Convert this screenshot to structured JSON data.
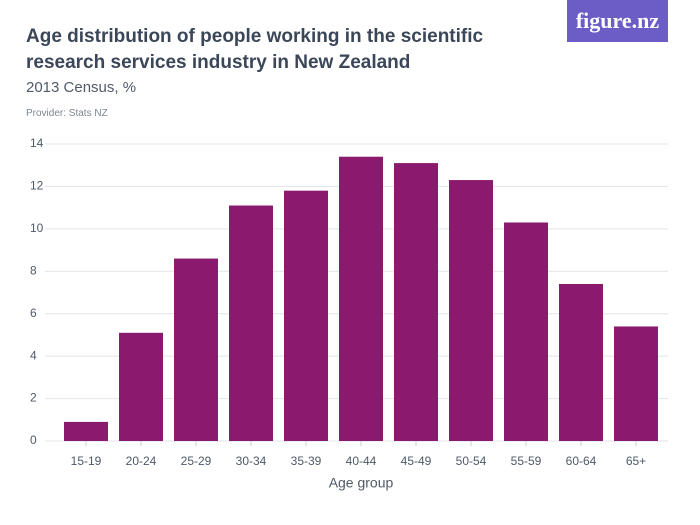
{
  "chart_data": {
    "type": "bar",
    "title": "Age distribution of people working in the scientific research services industry in New Zealand",
    "subtitle": "2013 Census, %",
    "provider": "Provider: Stats NZ",
    "logo": "figure.nz",
    "xlabel": "Age group",
    "categories": [
      "15-19",
      "20-24",
      "25-29",
      "30-34",
      "35-39",
      "40-44",
      "45-49",
      "50-54",
      "55-59",
      "60-64",
      "65+"
    ],
    "values": [
      0.9,
      5.1,
      8.6,
      11.1,
      11.8,
      13.4,
      13.1,
      12.3,
      10.3,
      7.4,
      5.4
    ],
    "color": "#891a6d",
    "ylim": [
      0,
      14
    ],
    "yticks": [
      0,
      2,
      4,
      6,
      8,
      10,
      12,
      14
    ],
    "grid": true
  }
}
